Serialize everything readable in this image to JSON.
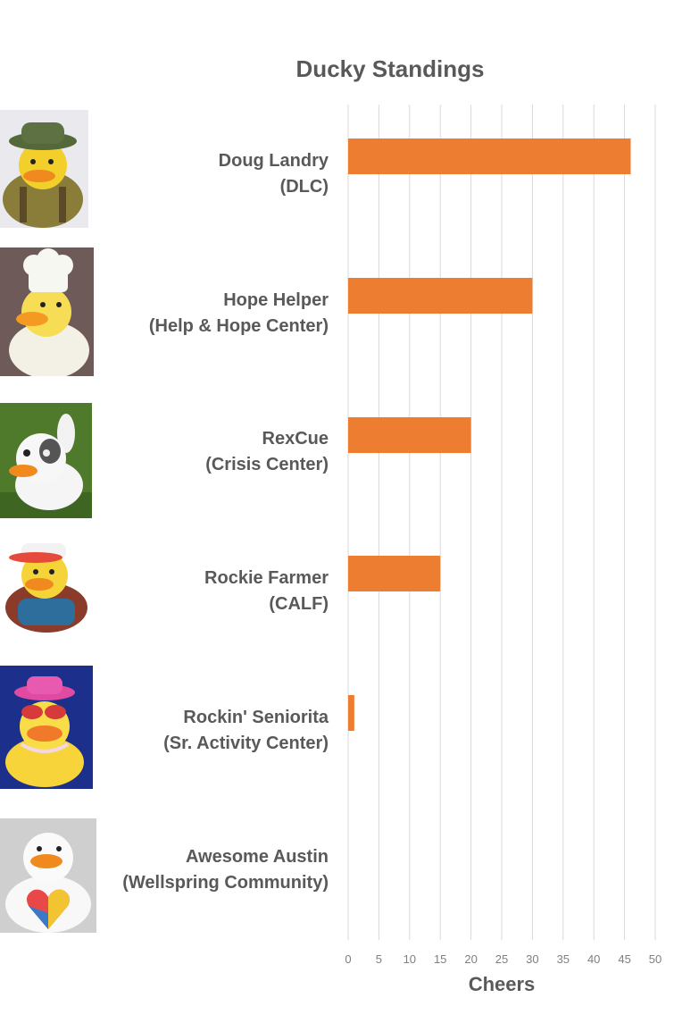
{
  "chart_data": {
    "type": "bar",
    "orientation": "horizontal",
    "title": "Ducky Standings",
    "xlabel": "Cheers",
    "ylabel": "",
    "xlim": [
      0,
      50
    ],
    "ticks": [
      0,
      5,
      10,
      15,
      20,
      25,
      30,
      35,
      40,
      45,
      50
    ],
    "grid": "vertical",
    "bar_color": "#ED7D31",
    "grid_color": "#D9D9D9",
    "categories": [
      [
        "Doug Landry",
        "(DLC)"
      ],
      [
        "Hope Helper",
        "(Help & Hope Center)"
      ],
      [
        "RexCue",
        "(Crisis Center)"
      ],
      [
        "Rockie Farmer",
        "(CALF)"
      ],
      [
        "Rockin' Seniorita",
        "(Sr. Activity Center)"
      ],
      [
        "Awesome Austin",
        "(Wellspring Community)"
      ]
    ],
    "values": [
      46,
      30,
      20,
      15,
      1,
      0
    ],
    "images": [
      "duck-bucket-hat",
      "duck-chef",
      "duck-dog",
      "duck-farmer",
      "duck-pink-hat",
      "duck-puzzle-heart"
    ]
  }
}
